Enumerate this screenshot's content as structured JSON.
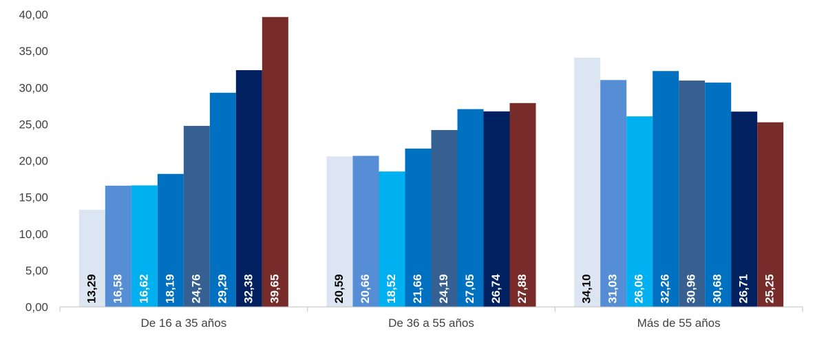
{
  "chart_data": {
    "type": "bar",
    "categories": [
      "De 16 a 35 años",
      "De 36 a 55 años",
      "Más de 55 años"
    ],
    "series": [
      {
        "values": [
          13.29,
          20.59,
          34.1
        ],
        "labels": [
          "13,29",
          "20,59",
          "34,10"
        ]
      },
      {
        "values": [
          16.58,
          20.66,
          31.03
        ],
        "labels": [
          "16,58",
          "20,66",
          "31,03"
        ]
      },
      {
        "values": [
          16.62,
          18.52,
          26.06
        ],
        "labels": [
          "16,62",
          "18,52",
          "26,06"
        ]
      },
      {
        "values": [
          18.19,
          21.66,
          32.26
        ],
        "labels": [
          "18,19",
          "21,66",
          "32,26"
        ]
      },
      {
        "values": [
          24.76,
          24.19,
          30.96
        ],
        "labels": [
          "24,76",
          "24,19",
          "30,96"
        ]
      },
      {
        "values": [
          29.29,
          27.05,
          30.68
        ],
        "labels": [
          "29,29",
          "27,05",
          "30,68"
        ]
      },
      {
        "values": [
          32.38,
          26.74,
          26.71
        ],
        "labels": [
          "32,38",
          "26,74",
          "26,71"
        ]
      },
      {
        "values": [
          39.65,
          27.88,
          25.25
        ],
        "labels": [
          "39,65",
          "27,88",
          "25,25"
        ]
      }
    ],
    "series_colors": [
      "#dce6f2",
      "#558ed5",
      "#00b0f0",
      "#0070c0",
      "#376092",
      "#0070c0",
      "#002060",
      "#772c2a"
    ],
    "label_colors": [
      "#000000",
      "#ffffff",
      "#ffffff",
      "#ffffff",
      "#ffffff",
      "#ffffff",
      "#ffffff",
      "#ffffff"
    ],
    "ylim": [
      0,
      40
    ],
    "yticks": [
      0,
      5,
      10,
      15,
      20,
      25,
      30,
      35,
      40
    ],
    "ytick_labels": [
      "0,00",
      "5,00",
      "10,00",
      "15,00",
      "20,00",
      "25,00",
      "30,00",
      "35,00",
      "40,00"
    ],
    "xlabel": "",
    "ylabel": "",
    "grid": false,
    "legend": "none"
  }
}
